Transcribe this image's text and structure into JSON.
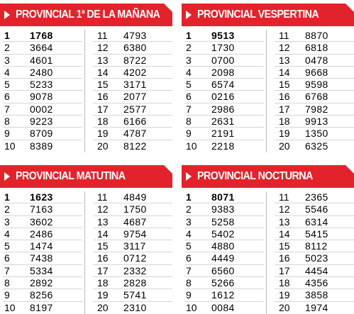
{
  "panels": [
    {
      "title_main": "PROVINCIAL 1",
      "title_sup": "a",
      "title_rest": " DE LA MAÑANA",
      "left": [
        {
          "pos": "1",
          "num": "1768"
        },
        {
          "pos": "2",
          "num": "3664"
        },
        {
          "pos": "3",
          "num": "4601"
        },
        {
          "pos": "4",
          "num": "2480"
        },
        {
          "pos": "5",
          "num": "5233"
        },
        {
          "pos": "6",
          "num": "9078"
        },
        {
          "pos": "7",
          "num": "0002"
        },
        {
          "pos": "8",
          "num": "9223"
        },
        {
          "pos": "9",
          "num": "8709"
        },
        {
          "pos": "10",
          "num": "8389"
        }
      ],
      "right": [
        {
          "pos": "11",
          "num": "4793"
        },
        {
          "pos": "12",
          "num": "6380"
        },
        {
          "pos": "13",
          "num": "8722"
        },
        {
          "pos": "14",
          "num": "4202"
        },
        {
          "pos": "15",
          "num": "3171"
        },
        {
          "pos": "16",
          "num": "2077"
        },
        {
          "pos": "17",
          "num": "2577"
        },
        {
          "pos": "18",
          "num": "6166"
        },
        {
          "pos": "19",
          "num": "4787"
        },
        {
          "pos": "20",
          "num": "8122"
        }
      ]
    },
    {
      "title_main": "PROVINCIAL VESPERTINA",
      "title_sup": "",
      "title_rest": "",
      "left": [
        {
          "pos": "1",
          "num": "9513"
        },
        {
          "pos": "2",
          "num": "1730"
        },
        {
          "pos": "3",
          "num": "0700"
        },
        {
          "pos": "4",
          "num": "2098"
        },
        {
          "pos": "5",
          "num": "6574"
        },
        {
          "pos": "6",
          "num": "0216"
        },
        {
          "pos": "7",
          "num": "2986"
        },
        {
          "pos": "8",
          "num": "2631"
        },
        {
          "pos": "9",
          "num": "2191"
        },
        {
          "pos": "10",
          "num": "2218"
        }
      ],
      "right": [
        {
          "pos": "11",
          "num": "8870"
        },
        {
          "pos": "12",
          "num": "6818"
        },
        {
          "pos": "13",
          "num": "0478"
        },
        {
          "pos": "14",
          "num": "9668"
        },
        {
          "pos": "15",
          "num": "9598"
        },
        {
          "pos": "16",
          "num": "6768"
        },
        {
          "pos": "17",
          "num": "7982"
        },
        {
          "pos": "18",
          "num": "9913"
        },
        {
          "pos": "19",
          "num": "1350"
        },
        {
          "pos": "20",
          "num": "6325"
        }
      ]
    },
    {
      "title_main": "PROVINCIAL MATUTINA",
      "title_sup": "",
      "title_rest": "",
      "left": [
        {
          "pos": "1",
          "num": "1623"
        },
        {
          "pos": "2",
          "num": "7163"
        },
        {
          "pos": "3",
          "num": "3602"
        },
        {
          "pos": "4",
          "num": "2486"
        },
        {
          "pos": "5",
          "num": "1474"
        },
        {
          "pos": "6",
          "num": "7438"
        },
        {
          "pos": "7",
          "num": "5334"
        },
        {
          "pos": "8",
          "num": "2892"
        },
        {
          "pos": "9",
          "num": "8256"
        },
        {
          "pos": "10",
          "num": "8197"
        }
      ],
      "right": [
        {
          "pos": "11",
          "num": "4849"
        },
        {
          "pos": "12",
          "num": "1750"
        },
        {
          "pos": "13",
          "num": "4687"
        },
        {
          "pos": "14",
          "num": "9754"
        },
        {
          "pos": "15",
          "num": "3117"
        },
        {
          "pos": "16",
          "num": "0712"
        },
        {
          "pos": "17",
          "num": "2332"
        },
        {
          "pos": "18",
          "num": "2828"
        },
        {
          "pos": "19",
          "num": "5741"
        },
        {
          "pos": "20",
          "num": "2310"
        }
      ]
    },
    {
      "title_main": "PROVINCIAL NOCTURNA",
      "title_sup": "",
      "title_rest": "",
      "left": [
        {
          "pos": "1",
          "num": "8071"
        },
        {
          "pos": "2",
          "num": "9383"
        },
        {
          "pos": "3",
          "num": "5258"
        },
        {
          "pos": "4",
          "num": "5402"
        },
        {
          "pos": "5",
          "num": "4880"
        },
        {
          "pos": "6",
          "num": "4449"
        },
        {
          "pos": "7",
          "num": "6560"
        },
        {
          "pos": "8",
          "num": "5266"
        },
        {
          "pos": "9",
          "num": "1612"
        },
        {
          "pos": "10",
          "num": "0084"
        }
      ],
      "right": [
        {
          "pos": "11",
          "num": "2365"
        },
        {
          "pos": "12",
          "num": "5546"
        },
        {
          "pos": "13",
          "num": "6314"
        },
        {
          "pos": "14",
          "num": "5415"
        },
        {
          "pos": "15",
          "num": "8112"
        },
        {
          "pos": "16",
          "num": "5023"
        },
        {
          "pos": "17",
          "num": "4454"
        },
        {
          "pos": "18",
          "num": "4356"
        },
        {
          "pos": "19",
          "num": "3858"
        },
        {
          "pos": "20",
          "num": "1974"
        }
      ]
    }
  ],
  "colors": {
    "title_bg": "#e3232b",
    "title_text": "#ffffff"
  }
}
